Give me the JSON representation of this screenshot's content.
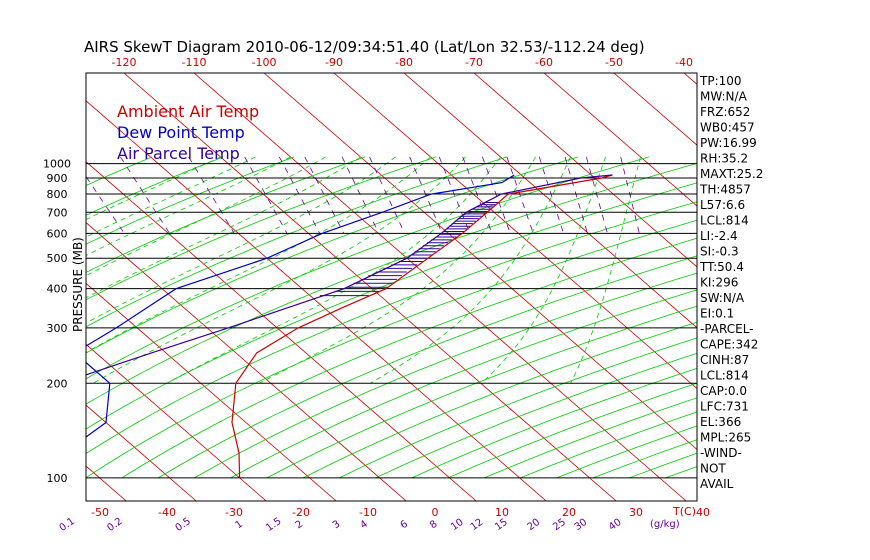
{
  "chart_data": {
    "type": "line",
    "title": "AIRS SkewT Diagram 2010-06-12/09:34:51.40 (Lat/Lon 32.53/-112.24 deg)",
    "ylabel": "PRESSURE (MB)",
    "x_unit_label": "T(C)",
    "mixing_unit_label": "(g/kg)",
    "pressure_ticks": [
      100,
      200,
      300,
      400,
      500,
      600,
      700,
      800,
      900,
      1000
    ],
    "temp_ticks_top": [
      -120,
      -110,
      -100,
      -90,
      -80,
      -70,
      -60,
      -50,
      -40
    ],
    "temp_ticks_bottom": [
      -50,
      -40,
      -30,
      -20,
      -10,
      0,
      10,
      20,
      30,
      40
    ],
    "mixing_ratio_ticks": [
      "0.1",
      "0.2",
      "0.5",
      "1",
      "1.5",
      "2",
      "3",
      "4",
      "6",
      "8",
      "10",
      "12",
      "15",
      "20",
      "25",
      "30",
      "40"
    ],
    "legend": [
      {
        "label": "Ambient Air Temp",
        "color": "#cc0000"
      },
      {
        "label": "Dew Point Temp",
        "color": "#0000cc"
      },
      {
        "label": "Air Parcel Temp",
        "color": "#330099"
      }
    ],
    "series": [
      {
        "name": "Ambient Air Temp",
        "color": "#cc0000",
        "points": [
          [
            100,
            -70
          ],
          [
            120,
            -66
          ],
          [
            150,
            -62
          ],
          [
            200,
            -55
          ],
          [
            250,
            -47
          ],
          [
            300,
            -37
          ],
          [
            350,
            -27
          ],
          [
            400,
            -18
          ],
          [
            500,
            -7
          ],
          [
            600,
            2
          ],
          [
            700,
            9
          ],
          [
            800,
            15
          ],
          [
            900,
            31
          ],
          [
            920,
            33
          ]
        ]
      },
      {
        "name": "Dew Point Temp",
        "color": "#0000cc",
        "points": [
          [
            100,
            -100
          ],
          [
            150,
            -80
          ],
          [
            200,
            -73
          ],
          [
            250,
            -73
          ],
          [
            300,
            -63
          ],
          [
            400,
            -48
          ],
          [
            500,
            -30
          ],
          [
            600,
            -18
          ],
          [
            700,
            -6
          ],
          [
            800,
            4
          ],
          [
            870,
            16
          ],
          [
            920,
            19
          ]
        ]
      },
      {
        "name": "Air Parcel Temp",
        "color": "#330099",
        "points": [
          [
            100,
            -120
          ],
          [
            150,
            -99
          ],
          [
            200,
            -80
          ],
          [
            250,
            -62
          ],
          [
            300,
            -47
          ],
          [
            400,
            -24
          ],
          [
            500,
            -10
          ],
          [
            600,
            -1
          ],
          [
            700,
            6
          ],
          [
            800,
            14
          ],
          [
            900,
            28
          ],
          [
            920,
            33
          ]
        ]
      }
    ]
  },
  "stats": [
    "TP:100",
    "MW:N/A",
    "FRZ:652",
    "WB0:457",
    "PW:16.99",
    "RH:35.2",
    "MAXT:25.2",
    "TH:4857",
    "L57:6.6",
    "LCL:814",
    "LI:-2.4",
    "SI:-0.3",
    "TT:50.4",
    "KI:296",
    "SW:N/A",
    "EI:0.1",
    "-PARCEL-",
    "CAPE:342",
    "CINH:87",
    "LCL:814",
    "CAP:0.0",
    "LFC:731",
    "EL:366",
    "MPL:265",
    "-WIND-",
    "NOT",
    "AVAIL"
  ],
  "colors": {
    "isotherm": "#cc0000",
    "dry_adiabat": "#00cc00",
    "moist_adiabat": "#00cc00",
    "mixing_ratio": "#660099",
    "cape_hatch": "#330099"
  }
}
